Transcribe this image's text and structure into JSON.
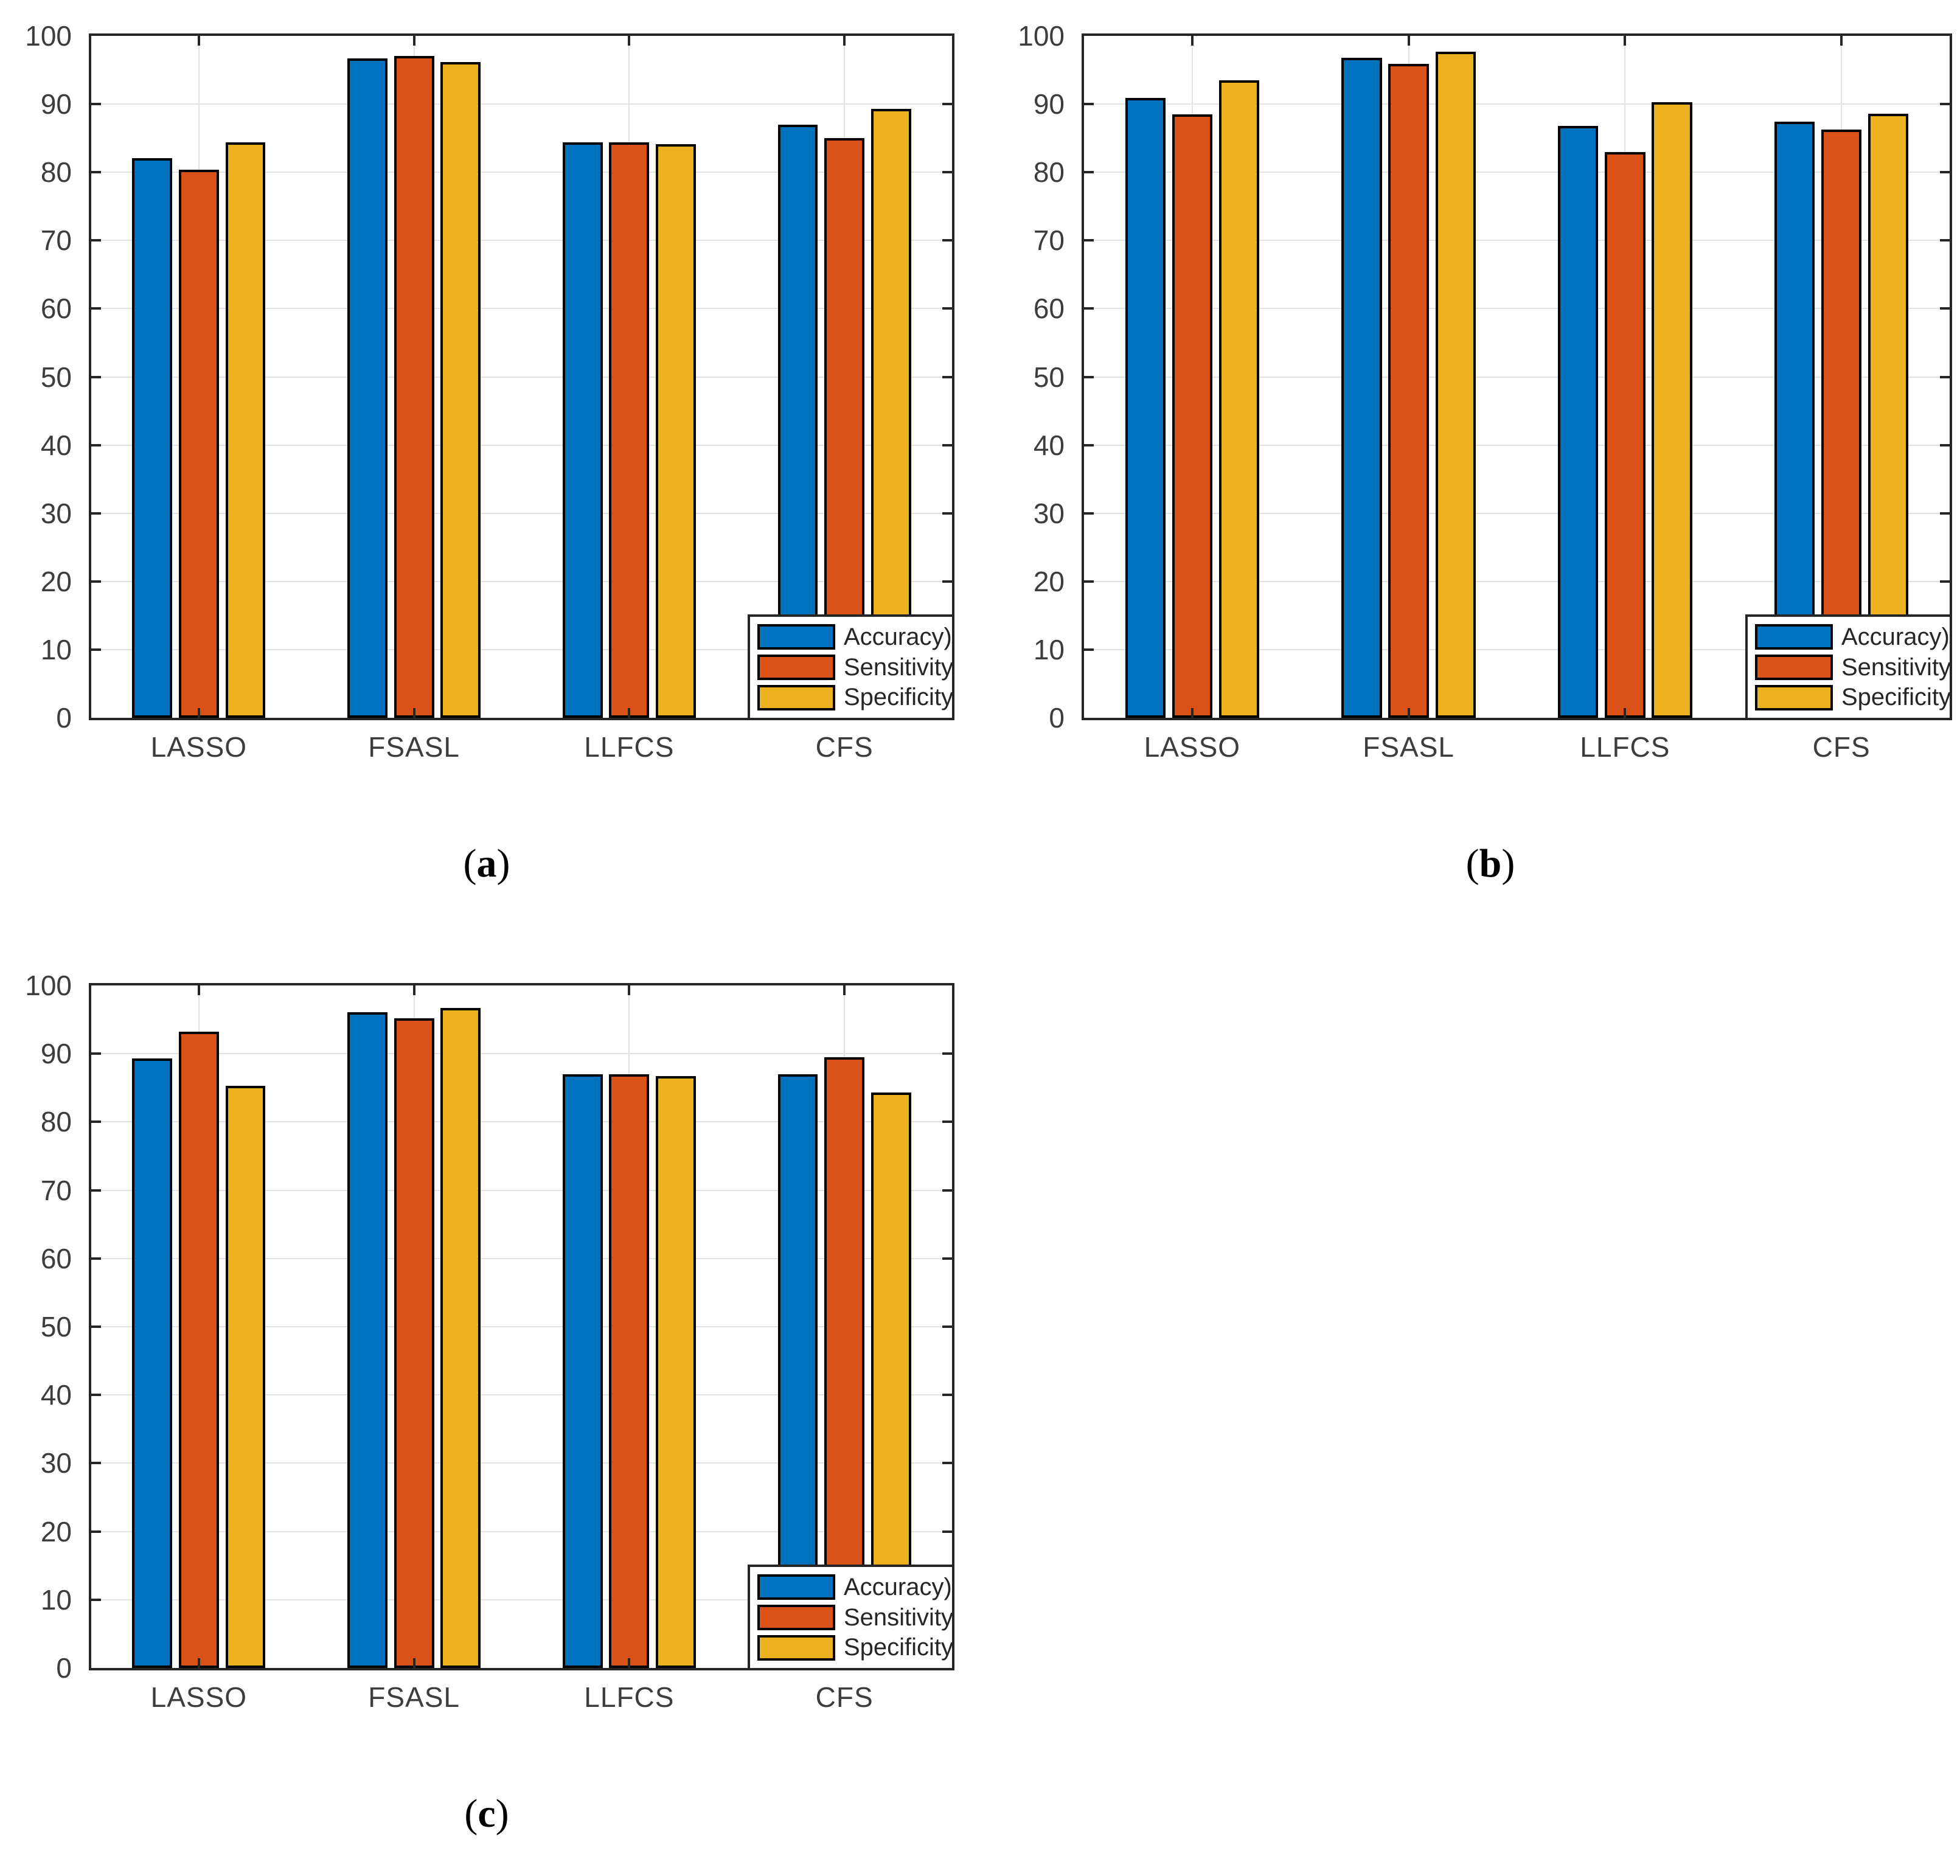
{
  "page": {
    "background": "#ffffff"
  },
  "palette": {
    "series_blue": "#0072BD",
    "series_orange": "#D95319",
    "series_yellow": "#EDB120",
    "axis": "#262626",
    "grid": "#E3E3E3",
    "tick_label": "#3D3D3D",
    "bar_edge": "#000000"
  },
  "figure": {
    "captions": [
      {
        "open": "(",
        "letter": "a",
        "close": ")"
      },
      {
        "open": "(",
        "letter": "b",
        "close": ")"
      },
      {
        "open": "(",
        "letter": "c",
        "close": ")"
      }
    ]
  },
  "chart_data": [
    {
      "type": "bar",
      "panel": "a",
      "title": "",
      "xlabel": "",
      "ylabel": "",
      "ylim": [
        0,
        100
      ],
      "yticks": [
        0,
        10,
        20,
        30,
        40,
        50,
        60,
        70,
        80,
        90,
        100
      ],
      "grid": true,
      "legend_position": "bottom-right",
      "categories": [
        "LASSO",
        "FSASL",
        "LLFCS",
        "CFS"
      ],
      "series": [
        {
          "name": "Accuracy)",
          "color": "#0072BD",
          "values": [
            82.1,
            96.7,
            84.4,
            87.0
          ]
        },
        {
          "name": "Sensitivity",
          "color": "#D95319",
          "values": [
            80.4,
            97.1,
            84.4,
            85.0
          ]
        },
        {
          "name": "Specificity",
          "color": "#EDB120",
          "values": [
            84.4,
            96.2,
            84.1,
            89.3
          ]
        }
      ]
    },
    {
      "type": "bar",
      "panel": "b",
      "title": "",
      "xlabel": "",
      "ylabel": "",
      "ylim": [
        0,
        100
      ],
      "yticks": [
        0,
        10,
        20,
        30,
        40,
        50,
        60,
        70,
        80,
        90,
        100
      ],
      "grid": true,
      "legend_position": "bottom-right",
      "categories": [
        "LASSO",
        "FSASL",
        "LLFCS",
        "CFS"
      ],
      "series": [
        {
          "name": "Accuracy)",
          "color": "#0072BD",
          "values": [
            90.9,
            96.8,
            86.8,
            87.4
          ]
        },
        {
          "name": "Sensitivity",
          "color": "#D95319",
          "values": [
            88.5,
            95.9,
            83.0,
            86.3
          ]
        },
        {
          "name": "Specificity",
          "color": "#EDB120",
          "values": [
            93.5,
            97.7,
            90.3,
            88.6
          ]
        }
      ]
    },
    {
      "type": "bar",
      "panel": "c",
      "title": "",
      "xlabel": "",
      "ylabel": "",
      "ylim": [
        0,
        100
      ],
      "yticks": [
        0,
        10,
        20,
        30,
        40,
        50,
        60,
        70,
        80,
        90,
        100
      ],
      "grid": true,
      "legend_position": "bottom-right",
      "categories": [
        "LASSO",
        "FSASL",
        "LLFCS",
        "CFS"
      ],
      "series": [
        {
          "name": "Accuracy)",
          "color": "#0072BD",
          "values": [
            89.3,
            96.1,
            87.0,
            87.0
          ]
        },
        {
          "name": "Sensitivity",
          "color": "#D95319",
          "values": [
            93.2,
            95.2,
            87.0,
            89.5
          ]
        },
        {
          "name": "Specificity",
          "color": "#EDB120",
          "values": [
            85.3,
            96.7,
            86.7,
            84.3
          ]
        }
      ]
    }
  ]
}
